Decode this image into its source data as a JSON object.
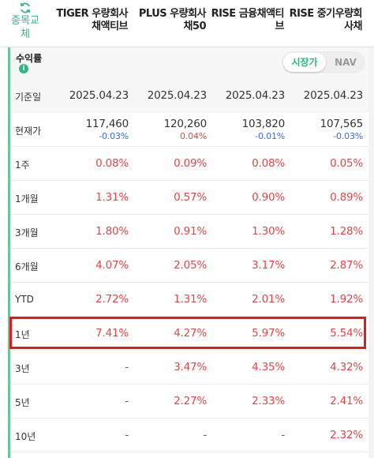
{
  "header": {
    "swap_label": "종목교체",
    "columns": [
      "TIGER 우량회사\n채액티브",
      "PLUS 우량회사\n채50",
      "RISE 금융채액티\n브",
      "RISE 중기우량회\n사채"
    ]
  },
  "section": {
    "title": "수익률",
    "toggle_on": "시장가",
    "toggle_off": "NAV"
  },
  "rows": {
    "base_date": {
      "label": "기준일",
      "values": [
        "2025.04.23",
        "2025.04.23",
        "2025.04.23",
        "2025.04.23"
      ]
    },
    "price": {
      "label": "현재가",
      "values": [
        "117,460",
        "120,260",
        "103,820",
        "107,565"
      ],
      "changes": [
        "-0.03%",
        "0.04%",
        "-0.01%",
        "-0.03%"
      ]
    },
    "w1": {
      "label": "1주",
      "values": [
        "0.08%",
        "0.09%",
        "0.08%",
        "0.05%"
      ]
    },
    "m1": {
      "label": "1개월",
      "values": [
        "1.31%",
        "0.57%",
        "0.90%",
        "0.89%"
      ]
    },
    "m3": {
      "label": "3개월",
      "values": [
        "1.80%",
        "0.91%",
        "1.30%",
        "1.28%"
      ]
    },
    "m6": {
      "label": "6개월",
      "values": [
        "4.07%",
        "2.05%",
        "3.17%",
        "2.87%"
      ]
    },
    "ytd": {
      "label": "YTD",
      "values": [
        "2.72%",
        "1.31%",
        "2.01%",
        "1.92%"
      ]
    },
    "y1": {
      "label": "1년",
      "values": [
        "7.41%",
        "4.27%",
        "5.97%",
        "5.54%"
      ]
    },
    "y3": {
      "label": "3년",
      "values": [
        "-",
        "3.47%",
        "4.35%",
        "4.32%"
      ]
    },
    "y5": {
      "label": "5년",
      "values": [
        "-",
        "2.27%",
        "2.33%",
        "2.41%"
      ]
    },
    "y10": {
      "label": "10년",
      "values": [
        "-",
        "-",
        "-",
        "2.32%"
      ]
    }
  },
  "colors": {
    "accent": "#2eb68a",
    "positive": "#e04848",
    "negative": "#3a6fd8",
    "highlight": "#e31a1a"
  }
}
